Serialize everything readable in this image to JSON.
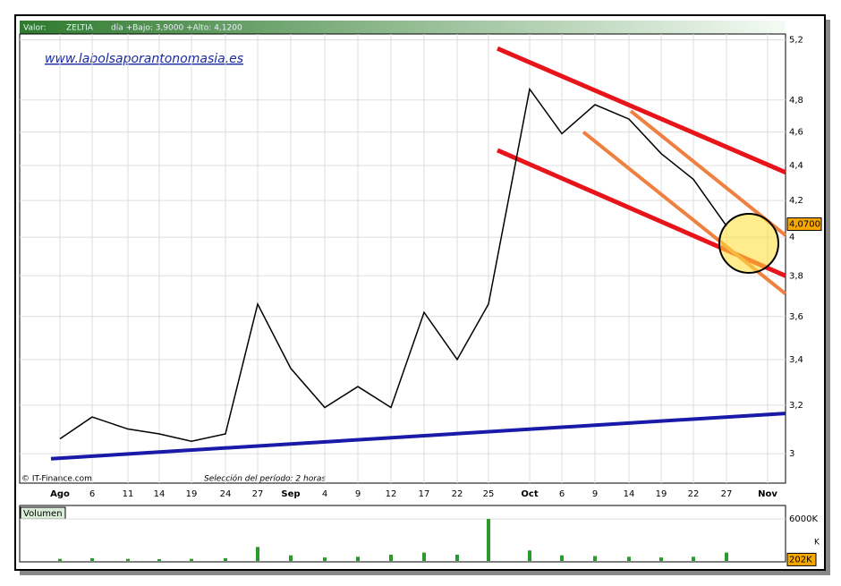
{
  "chart_data": {
    "type": "line",
    "header": {
      "label": "Valor:",
      "symbol": "ZELTIA",
      "info": "día +Bajo: 3,9000 +Alto: 4,1200"
    },
    "watermark": "www.labolsaporantonomasia.es",
    "source": "© IT-Finance.com",
    "period_note": "Selección del período: 2 horas",
    "categories": [
      "Ago",
      "6",
      "11",
      "14",
      "19",
      "24",
      "27",
      "Sep",
      "4",
      "9",
      "12",
      "17",
      "22",
      "25",
      "Oct",
      "6",
      "9",
      "14",
      "19",
      "22",
      "27",
      "Nov"
    ],
    "series": [
      {
        "name": "ZELTIA",
        "color": "#000000",
        "values": [
          3.06,
          3.15,
          3.1,
          3.08,
          3.05,
          3.08,
          3.66,
          3.36,
          3.19,
          3.28,
          3.19,
          3.62,
          3.4,
          3.66,
          4.87,
          4.59,
          4.77,
          4.68,
          4.47,
          4.32,
          4.06,
          null
        ]
      }
    ],
    "log_scale": true,
    "ylim": [
      2.885,
      5.24
    ],
    "yticks": [
      3,
      {
        "value": 3.2,
        "label": "3,2"
      },
      {
        "value": 3.4,
        "label": "3,4"
      },
      {
        "value": 3.6,
        "label": "3,6"
      },
      {
        "value": 3.8,
        "label": "3,8"
      },
      4,
      {
        "value": 4.2,
        "label": "4,2"
      },
      {
        "value": 4.4,
        "label": "4,4"
      },
      {
        "value": 4.6,
        "label": "4,6"
      },
      {
        "value": 4.8,
        "label": "4,8"
      },
      {
        "value": 5.2,
        "label": "5,2"
      }
    ],
    "grid": true,
    "last_price": {
      "value": 4.07,
      "label": "4,0700"
    },
    "trendlines": [
      {
        "color": "#e8141c",
        "values": [
          5.14,
          4.36
        ]
      },
      {
        "color": "#e8141c",
        "values": [
          4.49,
          3.8
        ]
      },
      {
        "color": "#f08040",
        "values": [
          4.73,
          4.01
        ]
      },
      {
        "color": "#f08040",
        "values": [
          4.6,
          3.71
        ]
      },
      {
        "color": "#1a1aa8",
        "values": [
          2.98,
          3.165
        ]
      }
    ],
    "volume": {
      "title": "Volumen",
      "color": "#2a9a2a",
      "values": [
        300,
        400,
        300,
        250,
        300,
        400,
        2000,
        800,
        500,
        600,
        900,
        1200,
        900,
        6000,
        1500,
        800,
        700,
        600,
        500,
        600,
        1200,
        null
      ],
      "ylim": [
        0,
        7800
      ],
      "yticks": [
        {
          "value": 6000,
          "label": "6000K"
        }
      ],
      "last": {
        "value": 202,
        "label": "202K"
      },
      "unit": "K"
    }
  }
}
